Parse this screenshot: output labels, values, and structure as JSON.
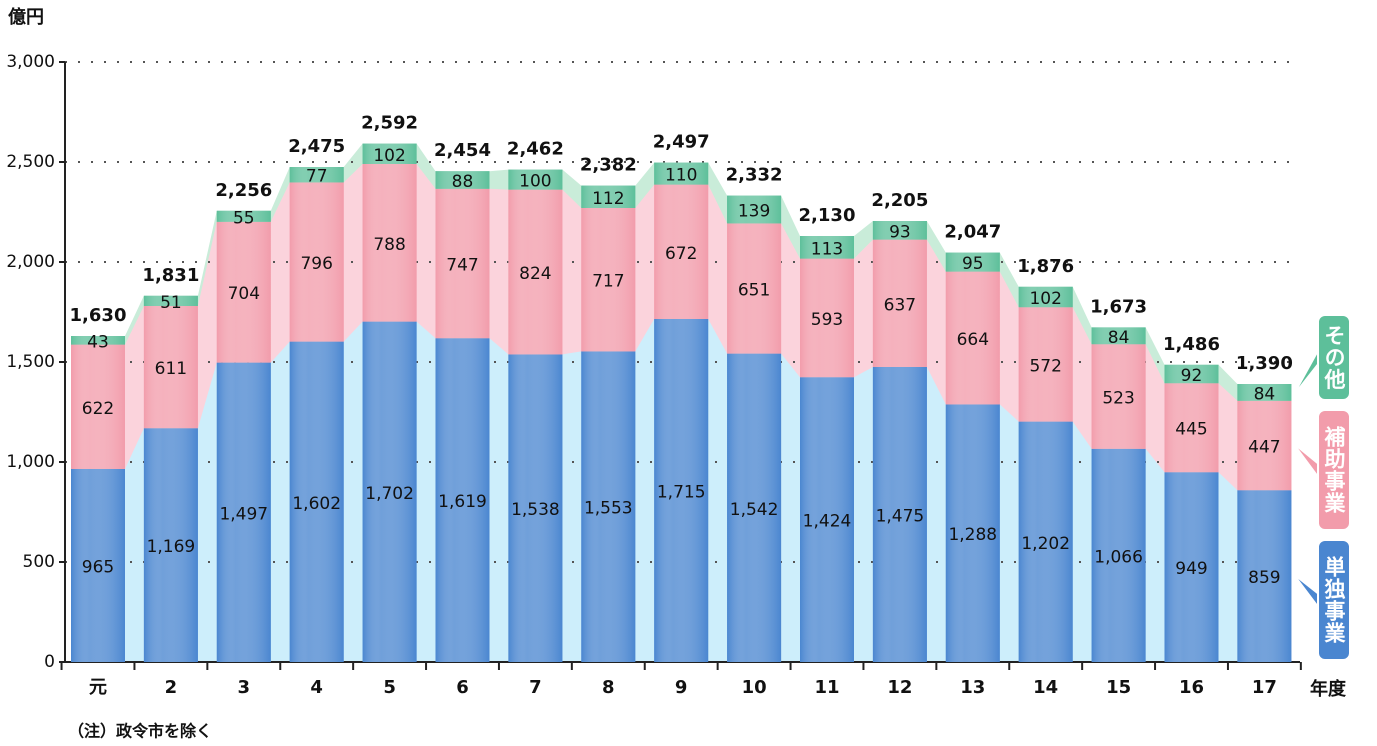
{
  "chart_data": {
    "type": "stacked-bar",
    "y_label": "億円",
    "x_label": "年度",
    "note": "（注）政令市を除く",
    "categories": [
      "元",
      "2",
      "3",
      "4",
      "5",
      "6",
      "7",
      "8",
      "9",
      "10",
      "11",
      "12",
      "13",
      "14",
      "15",
      "16",
      "17"
    ],
    "series": [
      {
        "name": "単独事業",
        "color": "#4a86d0",
        "area_color": "#cdeefb",
        "values": [
          965,
          1169,
          1497,
          1602,
          1702,
          1619,
          1538,
          1553,
          1715,
          1542,
          1424,
          1475,
          1288,
          1202,
          1066,
          949,
          859
        ],
        "value_labels": [
          "965",
          "1,169",
          "1,497",
          "1,602",
          "1,702",
          "1,619",
          "1,538",
          "1,553",
          "1,715",
          "1,542",
          "1,424",
          "1,475",
          "1,288",
          "1,202",
          "1,066",
          "949",
          "859"
        ]
      },
      {
        "name": "補助事業",
        "color": "#f29cab",
        "area_color": "#fbd3dc",
        "values": [
          622,
          611,
          704,
          796,
          788,
          747,
          824,
          717,
          672,
          651,
          593,
          637,
          664,
          572,
          523,
          445,
          447
        ]
      },
      {
        "name": "その他",
        "color": "#5dbf9a",
        "area_color": "#c9ecd9",
        "values": [
          43,
          51,
          55,
          77,
          102,
          88,
          100,
          112,
          110,
          139,
          113,
          93,
          95,
          102,
          84,
          92,
          84
        ]
      }
    ],
    "totals": {
      "values": [
        1630,
        1831,
        2256,
        2475,
        2592,
        2454,
        2462,
        2382,
        2497,
        2332,
        2130,
        2205,
        2047,
        1876,
        1673,
        1486,
        1390
      ],
      "value_labels": [
        "1,630",
        "1,831",
        "2,256",
        "2,475",
        "2,592",
        "2,454",
        "2,462",
        "2,382",
        "2,497",
        "2,332",
        "2,130",
        "2,205",
        "2,047",
        "1,876",
        "1,673",
        "1,486",
        "1,390"
      ]
    },
    "ylim": [
      0,
      3000
    ],
    "yticks": [
      0,
      500,
      {
        "value": 1000,
        "label": "1,000"
      },
      {
        "value": 1500,
        "label": "1,500"
      },
      {
        "value": 2000,
        "label": "2,000"
      },
      {
        "value": 2500,
        "label": "2,500"
      },
      {
        "value": 3000,
        "label": "3,000"
      }
    ],
    "grid": true
  }
}
